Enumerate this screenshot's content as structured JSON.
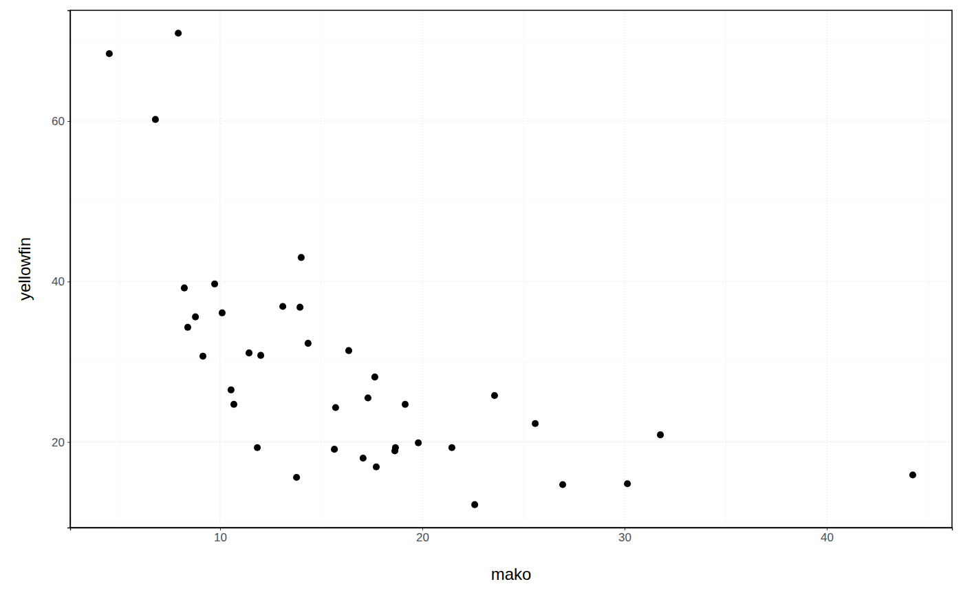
{
  "chart_data": {
    "type": "scatter",
    "x_label": "mako",
    "y_label": "yellowfin",
    "x": [
      4.52,
      7.93,
      6.8,
      8.23,
      9.73,
      8.4,
      8.78,
      10.1,
      9.15,
      11.43,
      12.01,
      10.54,
      10.68,
      11.84,
      13.1,
      13.95,
      14.01,
      14.35,
      13.78,
      16.36,
      15.71,
      15.65,
      17.07,
      17.31,
      17.65,
      17.72,
      18.64,
      18.67,
      19.15,
      19.8,
      21.46,
      22.59,
      23.57,
      25.58,
      26.94,
      30.14,
      31.77,
      44.25
    ],
    "values": [
      68.4,
      70.95,
      60.2,
      39.2,
      39.7,
      34.3,
      35.6,
      36.1,
      30.7,
      31.1,
      30.8,
      26.5,
      24.7,
      19.3,
      36.9,
      36.8,
      43.0,
      32.3,
      15.6,
      31.4,
      24.3,
      19.1,
      18.0,
      25.5,
      28.1,
      16.9,
      18.9,
      19.3,
      24.7,
      19.9,
      19.3,
      12.2,
      25.8,
      22.3,
      14.7,
      14.8,
      20.9,
      15.9
    ],
    "color": "#000000",
    "marker": "circle",
    "xlim": [
      2.585,
      46.19
    ],
    "ylim": [
      9.34,
      73.8
    ],
    "xticks": [
      10,
      20,
      30,
      40
    ],
    "yticks": [
      20,
      40,
      60
    ],
    "grid": true
  }
}
